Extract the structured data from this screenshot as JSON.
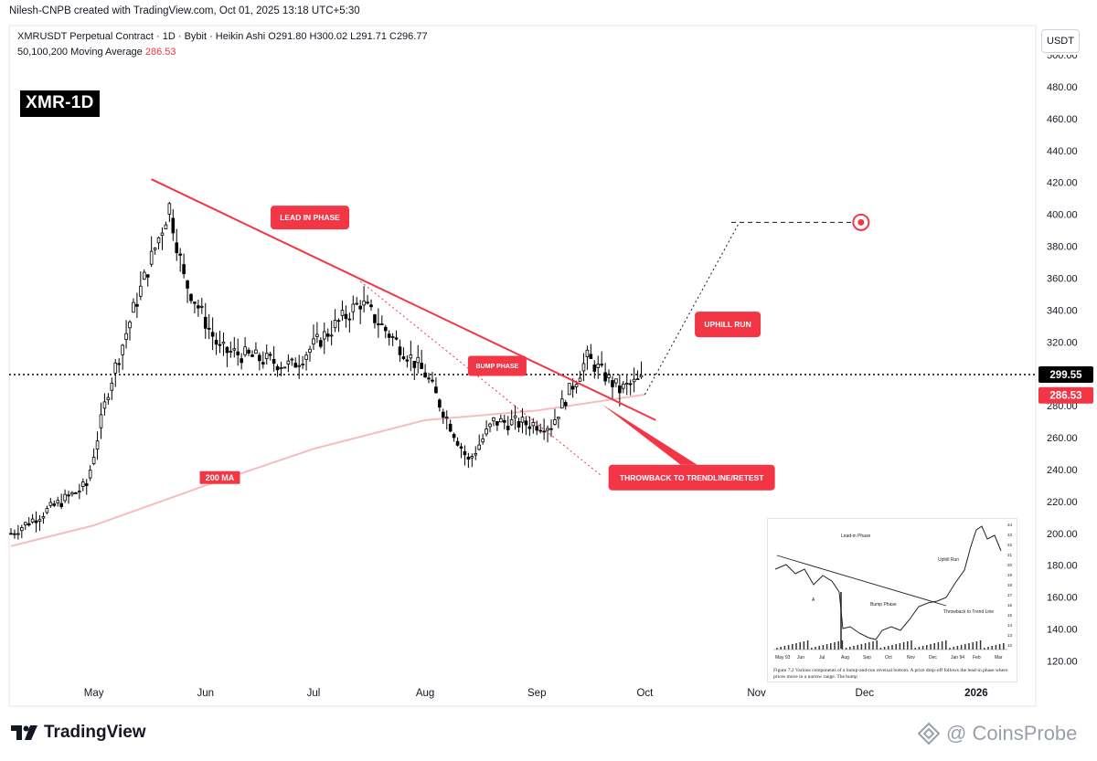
{
  "header": {
    "attribution": "Nilesh-CNPB created with TradingView.com, Oct 01, 2025 13:18 UTC+5:30",
    "symbol_line": "XMRUSDT Perpetual Contract · 1D · Bybit · Heikin Ashi  O291.80  H300.02  L291.71  C296.77",
    "ma_label": "50,100,200 Moving Average",
    "ma_value": "286.53",
    "ticker_badge": "XMR-1D",
    "currency": "USDT"
  },
  "footer": {
    "logo_text": "TradingView",
    "watermark": "CoinsProbe"
  },
  "colors": {
    "up": "#000000",
    "down": "#000000",
    "trendline": "#f23645",
    "ma": "#f8bcc0",
    "label_bg": "#f23645",
    "last_price_bg": "#000000",
    "ma_price_bg": "#f23645"
  },
  "chart_data": {
    "type": "candlestick",
    "symbol": "XMRUSDT Perpetual Contract",
    "timeframe": "1D",
    "exchange": "Bybit",
    "style": "Heikin Ashi",
    "ohlc_last": {
      "open": 291.8,
      "high": 300.02,
      "low": 291.71,
      "close": 296.77
    },
    "last_price_label": "299.55",
    "ma_price_label": "286.53",
    "y_axis": {
      "ticks": [
        120,
        140,
        160,
        180,
        200,
        220,
        240,
        260,
        280,
        300,
        320,
        340,
        360,
        380,
        400,
        420,
        440,
        460,
        480
      ],
      "top_partial": "500.00",
      "ylim": [
        112,
        505
      ]
    },
    "x_axis": {
      "labels": [
        "May",
        "Jun",
        "Jul",
        "Aug",
        "Sep",
        "Oct",
        "Nov",
        "Dec",
        "2026"
      ]
    },
    "key_points": [
      {
        "date": "2025-04-08",
        "price": 200
      },
      {
        "date": "2025-04-29",
        "price": 230
      },
      {
        "date": "2025-05-05",
        "price": 290
      },
      {
        "date": "2025-05-12",
        "price": 340
      },
      {
        "date": "2025-05-22",
        "price": 405
      },
      {
        "date": "2025-05-26",
        "price": 360
      },
      {
        "date": "2025-06-05",
        "price": 315
      },
      {
        "date": "2025-06-25",
        "price": 305
      },
      {
        "date": "2025-07-14",
        "price": 345
      },
      {
        "date": "2025-08-01",
        "price": 300
      },
      {
        "date": "2025-08-13",
        "price": 245
      },
      {
        "date": "2025-08-20",
        "price": 270
      },
      {
        "date": "2025-09-05",
        "price": 268
      },
      {
        "date": "2025-09-15",
        "price": 310
      },
      {
        "date": "2025-09-24",
        "price": 290
      },
      {
        "date": "2025-09-30",
        "price": 296
      }
    ],
    "moving_average_200": [
      {
        "date": "2025-04-08",
        "price": 192
      },
      {
        "date": "2025-05-01",
        "price": 205
      },
      {
        "date": "2025-06-01",
        "price": 230
      },
      {
        "date": "2025-07-01",
        "price": 253
      },
      {
        "date": "2025-08-01",
        "price": 271
      },
      {
        "date": "2025-09-01",
        "price": 277
      },
      {
        "date": "2025-10-01",
        "price": 287
      }
    ],
    "annotations": [
      {
        "text": "LEAD IN PHASE",
        "date": "2025-06-30",
        "price": 398
      },
      {
        "text": "BUMP PHASE",
        "date": "2025-08-21",
        "price": 305
      },
      {
        "text": "UPHILL RUN",
        "date": "2025-10-24",
        "price": 331
      },
      {
        "text": "THROWBACK TO TRENDLINE/RETEST",
        "date": "2025-10-14",
        "price": 235
      },
      {
        "text": "200 MA",
        "date": "2025-06-05",
        "price": 235
      }
    ],
    "trendline": [
      {
        "date": "2025-05-17",
        "price": 422
      },
      {
        "date": "2025-10-04",
        "price": 271
      }
    ],
    "bump_line": [
      {
        "date": "2025-07-14",
        "price": 358
      },
      {
        "date": "2025-09-19",
        "price": 236
      }
    ],
    "projection": {
      "from": {
        "date": "2025-10-01",
        "price": 287
      },
      "to": {
        "date": "2025-10-27",
        "price": 394
      }
    },
    "target": {
      "price": 395,
      "date_start": "2025-10-25",
      "date_end": "2025-11-30"
    }
  },
  "inset": {
    "labels": [
      "Lead-in Phase",
      "Bump Phase",
      "Uphill Run",
      "Throwback to Trend Line",
      "A"
    ],
    "x_labels": [
      "May 93",
      "Jun",
      "Jul",
      "Aug",
      "Sep",
      "Oct",
      "Nov",
      "Dec",
      "Jan 94",
      "Feb",
      "Mar"
    ],
    "y_labels": [
      "24",
      "23",
      "22",
      "21",
      "20",
      "19",
      "18",
      "17",
      "16",
      "15",
      "14",
      "13",
      "12"
    ],
    "caption": "Figure 7.2  Various components of a bump-and-run reversal bottom. A price drop-off follows the lead-in phase where prices move in a narrow range. The bump"
  }
}
